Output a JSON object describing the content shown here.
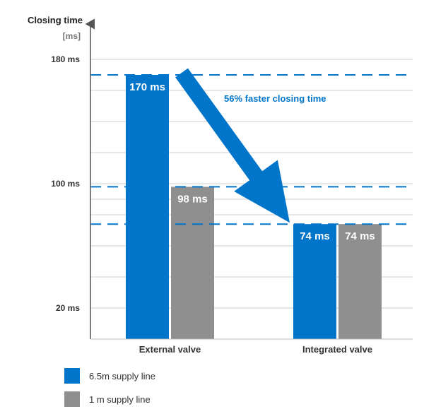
{
  "chart_data": {
    "type": "bar",
    "ylabel": "Closing time",
    "yunit": "[ms]",
    "categories": [
      "External valve",
      "Integrated valve"
    ],
    "series": [
      {
        "name": "6.5m supply line",
        "values": [
          170,
          74
        ],
        "labels": [
          "170 ms",
          "74 ms"
        ],
        "color": "#0075c9"
      },
      {
        "name": "1 m supply line",
        "values": [
          98,
          74
        ],
        "labels": [
          "98 ms",
          "74 ms"
        ],
        "color": "#8f8f8f"
      }
    ],
    "yticks": [
      {
        "value": 180,
        "label": "180 ms"
      },
      {
        "value": 100,
        "label": "100 ms"
      },
      {
        "value": 20,
        "label": "20 ms"
      }
    ],
    "gridlines": [
      0,
      20,
      40,
      60,
      80,
      90,
      100,
      120,
      140,
      160,
      180
    ],
    "ylim": [
      0,
      180
    ],
    "reference_lines": [
      170,
      98,
      74
    ],
    "annotation": {
      "text": "56% faster closing time",
      "color": "#0075c9",
      "from_value": 170,
      "to_value": 74
    },
    "legend_position": "bottom-left",
    "grid": true
  }
}
